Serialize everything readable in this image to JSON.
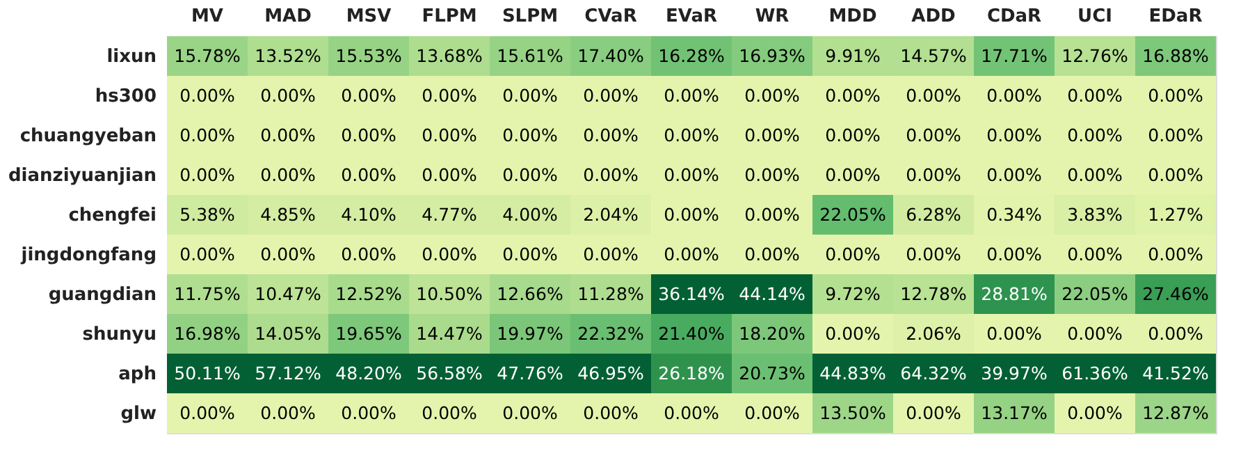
{
  "chart_data": {
    "type": "heatmap",
    "categories": [
      "MV",
      "MAD",
      "MSV",
      "FLPM",
      "SLPM",
      "CVaR",
      "EVaR",
      "WR",
      "MDD",
      "ADD",
      "CDaR",
      "UCI",
      "EDaR"
    ],
    "y_categories": [
      "lixun",
      "hs300",
      "chuangyeban",
      "dianziyuanjian",
      "chengfei",
      "jingdongfang",
      "guangdian",
      "shunyu",
      "aph",
      "glw"
    ],
    "cells": [
      [
        15.78,
        13.52,
        15.53,
        13.68,
        15.61,
        17.4,
        16.28,
        16.93,
        9.91,
        14.57,
        17.71,
        12.76,
        16.88
      ],
      [
        0,
        0,
        0,
        0,
        0,
        0,
        0,
        0,
        0,
        0,
        0,
        0,
        0
      ],
      [
        0,
        0,
        0,
        0,
        0,
        0,
        0,
        0,
        0,
        0,
        0,
        0,
        0
      ],
      [
        0,
        0,
        0,
        0,
        0,
        0,
        0,
        0,
        0,
        0,
        0,
        0,
        0
      ],
      [
        5.38,
        4.85,
        4.1,
        4.77,
        4.0,
        2.04,
        0,
        0,
        22.05,
        6.28,
        0.34,
        3.83,
        1.27
      ],
      [
        0,
        0,
        0,
        0,
        0,
        0,
        0,
        0,
        0,
        0,
        0,
        0,
        0
      ],
      [
        11.75,
        10.47,
        12.52,
        10.5,
        12.66,
        11.28,
        36.14,
        44.14,
        9.72,
        12.78,
        28.81,
        22.05,
        27.46
      ],
      [
        16.98,
        14.05,
        19.65,
        14.47,
        19.97,
        22.32,
        21.4,
        18.2,
        0,
        2.06,
        0,
        0,
        0
      ],
      [
        50.11,
        57.12,
        48.2,
        56.58,
        47.76,
        46.95,
        26.18,
        20.73,
        44.83,
        64.32,
        39.97,
        61.36,
        41.52
      ],
      [
        0,
        0,
        0,
        0,
        0,
        0,
        0,
        0,
        13.5,
        0,
        13.17,
        0,
        12.87
      ]
    ],
    "cell_labels": [
      [
        "15.78%",
        "13.52%",
        "15.53%",
        "13.68%",
        "15.61%",
        "17.40%",
        "16.28%",
        "16.93%",
        "9.91%",
        "14.57%",
        "17.71%",
        "12.76%",
        "16.88%"
      ],
      [
        "0.00%",
        "0.00%",
        "0.00%",
        "0.00%",
        "0.00%",
        "0.00%",
        "0.00%",
        "0.00%",
        "0.00%",
        "0.00%",
        "0.00%",
        "0.00%",
        "0.00%"
      ],
      [
        "0.00%",
        "0.00%",
        "0.00%",
        "0.00%",
        "0.00%",
        "0.00%",
        "0.00%",
        "0.00%",
        "0.00%",
        "0.00%",
        "0.00%",
        "0.00%",
        "0.00%"
      ],
      [
        "0.00%",
        "0.00%",
        "0.00%",
        "0.00%",
        "0.00%",
        "0.00%",
        "0.00%",
        "0.00%",
        "0.00%",
        "0.00%",
        "0.00%",
        "0.00%",
        "0.00%"
      ],
      [
        "5.38%",
        "4.85%",
        "4.10%",
        "4.77%",
        "4.00%",
        "2.04%",
        "0.00%",
        "0.00%",
        "22.05%",
        "6.28%",
        "0.34%",
        "3.83%",
        "1.27%"
      ],
      [
        "0.00%",
        "0.00%",
        "0.00%",
        "0.00%",
        "0.00%",
        "0.00%",
        "0.00%",
        "0.00%",
        "0.00%",
        "0.00%",
        "0.00%",
        "0.00%",
        "0.00%"
      ],
      [
        "11.75%",
        "10.47%",
        "12.52%",
        "10.50%",
        "12.66%",
        "11.28%",
        "36.14%",
        "44.14%",
        "9.72%",
        "12.78%",
        "28.81%",
        "22.05%",
        "27.46%"
      ],
      [
        "16.98%",
        "14.05%",
        "19.65%",
        "14.47%",
        "19.97%",
        "22.32%",
        "21.40%",
        "18.20%",
        "0.00%",
        "2.06%",
        "0.00%",
        "0.00%",
        "0.00%"
      ],
      [
        "50.11%",
        "57.12%",
        "48.20%",
        "56.58%",
        "47.76%",
        "46.95%",
        "26.18%",
        "20.73%",
        "44.83%",
        "64.32%",
        "39.97%",
        "61.36%",
        "41.52%"
      ],
      [
        "0.00%",
        "0.00%",
        "0.00%",
        "0.00%",
        "0.00%",
        "0.00%",
        "0.00%",
        "0.00%",
        "13.50%",
        "0.00%",
        "13.17%",
        "0.00%",
        "12.87%"
      ]
    ]
  }
}
